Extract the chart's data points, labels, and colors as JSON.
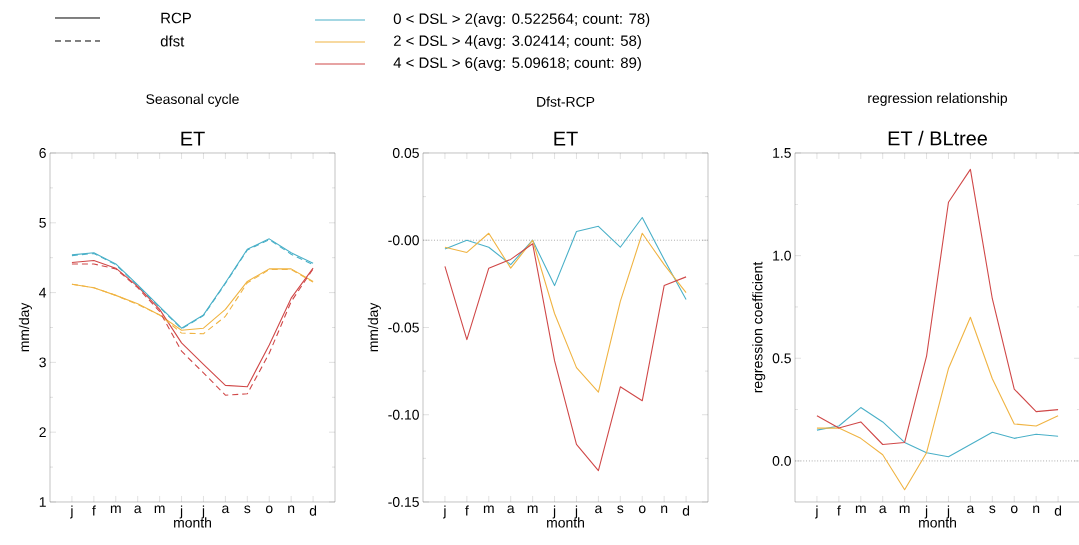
{
  "chart_data": [
    {
      "type": "line",
      "subtitle": "Seasonal cycle",
      "title": "ET",
      "xlabel": "month",
      "ylabel": "mm/day",
      "legend": "top",
      "annotations": [
        "RCP",
        "dfst"
      ],
      "categories": [
        "j",
        "f",
        "m",
        "a",
        "m",
        "j",
        "j",
        "a",
        "s",
        "o",
        "n",
        "d"
      ],
      "ylim": [
        1,
        6
      ],
      "yticks": [
        1,
        2,
        3,
        4,
        5,
        6
      ],
      "series": [
        {
          "name": "0 < DSL > 2(avg: 0.522564; count: 78)",
          "color": "#4ab0c8",
          "line_style": "solid",
          "values": [
            4.54,
            4.57,
            4.41,
            4.11,
            3.8,
            3.49,
            3.68,
            4.14,
            4.62,
            4.77,
            4.57,
            4.42
          ]
        },
        {
          "name": "2 < DSL > 4(avg: 3.02414; count: 58)",
          "color": "#f0b443",
          "line_style": "solid",
          "values": [
            4.12,
            4.07,
            3.96,
            3.84,
            3.68,
            3.46,
            3.49,
            3.76,
            4.16,
            4.34,
            4.34,
            4.16
          ]
        },
        {
          "name": "4 < DSL > 6(avg: 5.09618; count: 89)",
          "color": "#d04848",
          "line_style": "solid",
          "values": [
            4.43,
            4.46,
            4.35,
            4.09,
            3.76,
            3.28,
            2.97,
            2.67,
            2.65,
            3.25,
            3.92,
            4.35
          ]
        },
        {
          "color": "#4ab0c8",
          "line_style": "dashed",
          "values": [
            4.53,
            4.56,
            4.4,
            4.1,
            3.79,
            3.48,
            3.67,
            4.13,
            4.61,
            4.76,
            4.55,
            4.4
          ]
        },
        {
          "color": "#f0b443",
          "line_style": "dashed",
          "values": [
            4.12,
            4.07,
            3.96,
            3.83,
            3.68,
            3.42,
            3.41,
            3.66,
            4.14,
            4.33,
            4.33,
            4.15
          ]
        },
        {
          "color": "#d04848",
          "line_style": "dashed",
          "values": [
            4.41,
            4.41,
            4.34,
            4.07,
            3.73,
            3.16,
            2.85,
            2.53,
            2.55,
            3.13,
            3.87,
            4.34
          ]
        }
      ]
    },
    {
      "type": "line",
      "subtitle": "Dfst-RCP",
      "title": "ET",
      "xlabel": "month",
      "ylabel": "mm/day",
      "categories": [
        "j",
        "f",
        "m",
        "a",
        "m",
        "j",
        "j",
        "a",
        "s",
        "o",
        "n",
        "d"
      ],
      "ylim": [
        -0.15,
        0.05
      ],
      "yticks": [
        {
          "value": -0.15,
          "label": "-0.15"
        },
        {
          "value": -0.1,
          "label": "-0.10"
        },
        {
          "value": -0.05,
          "label": "-0.05"
        },
        {
          "value": 0,
          "label": "-0.00"
        },
        {
          "value": 0.05,
          "label": "0.05"
        }
      ],
      "ref_lines": [
        {
          "axis": "y",
          "value": 0,
          "color": "#808080",
          "line_style": "dotted"
        }
      ],
      "series": [
        {
          "color": "#4ab0c8",
          "values": [
            -0.005,
            0.0,
            -0.004,
            -0.014,
            0.0,
            -0.026,
            0.005,
            0.008,
            -0.004,
            0.013,
            -0.011,
            -0.034
          ]
        },
        {
          "color": "#f0b443",
          "values": [
            -0.004,
            -0.007,
            0.004,
            -0.016,
            0.0,
            -0.042,
            -0.073,
            -0.087,
            -0.035,
            0.004,
            -0.014,
            -0.03
          ]
        },
        {
          "color": "#d04848",
          "values": [
            -0.015,
            -0.057,
            -0.016,
            -0.011,
            -0.002,
            -0.069,
            -0.117,
            -0.132,
            -0.084,
            -0.092,
            -0.026,
            -0.021
          ]
        }
      ]
    },
    {
      "type": "line",
      "subtitle": "regression relationship",
      "title": "ET / BLtree",
      "xlabel": "month",
      "ylabel": "regression coefficient",
      "categories": [
        "j",
        "f",
        "m",
        "a",
        "m",
        "j",
        "j",
        "a",
        "s",
        "o",
        "n",
        "d"
      ],
      "ylim": [
        -0.2,
        1.5
      ],
      "yticks": [
        {
          "value": 0,
          "label": "0.0"
        },
        {
          "value": 0.5,
          "label": "0.5"
        },
        {
          "value": 1,
          "label": "1.0"
        },
        {
          "value": 1.5,
          "label": "1.5"
        }
      ],
      "ref_lines": [
        {
          "axis": "y",
          "value": 0,
          "color": "#808080",
          "line_style": "dotted"
        }
      ],
      "series": [
        {
          "color": "#4ab0c8",
          "values": [
            0.15,
            0.17,
            0.26,
            0.19,
            0.09,
            0.04,
            0.02,
            0.08,
            0.14,
            0.11,
            0.13,
            0.12
          ]
        },
        {
          "color": "#f0b443",
          "values": [
            0.16,
            0.16,
            0.11,
            0.03,
            -0.14,
            0.04,
            0.45,
            0.7,
            0.4,
            0.18,
            0.17,
            0.22
          ]
        },
        {
          "color": "#d04848",
          "values": [
            0.22,
            0.16,
            0.19,
            0.08,
            0.09,
            0.51,
            1.26,
            1.42,
            0.79,
            0.35,
            0.24,
            0.25
          ]
        }
      ]
    }
  ]
}
